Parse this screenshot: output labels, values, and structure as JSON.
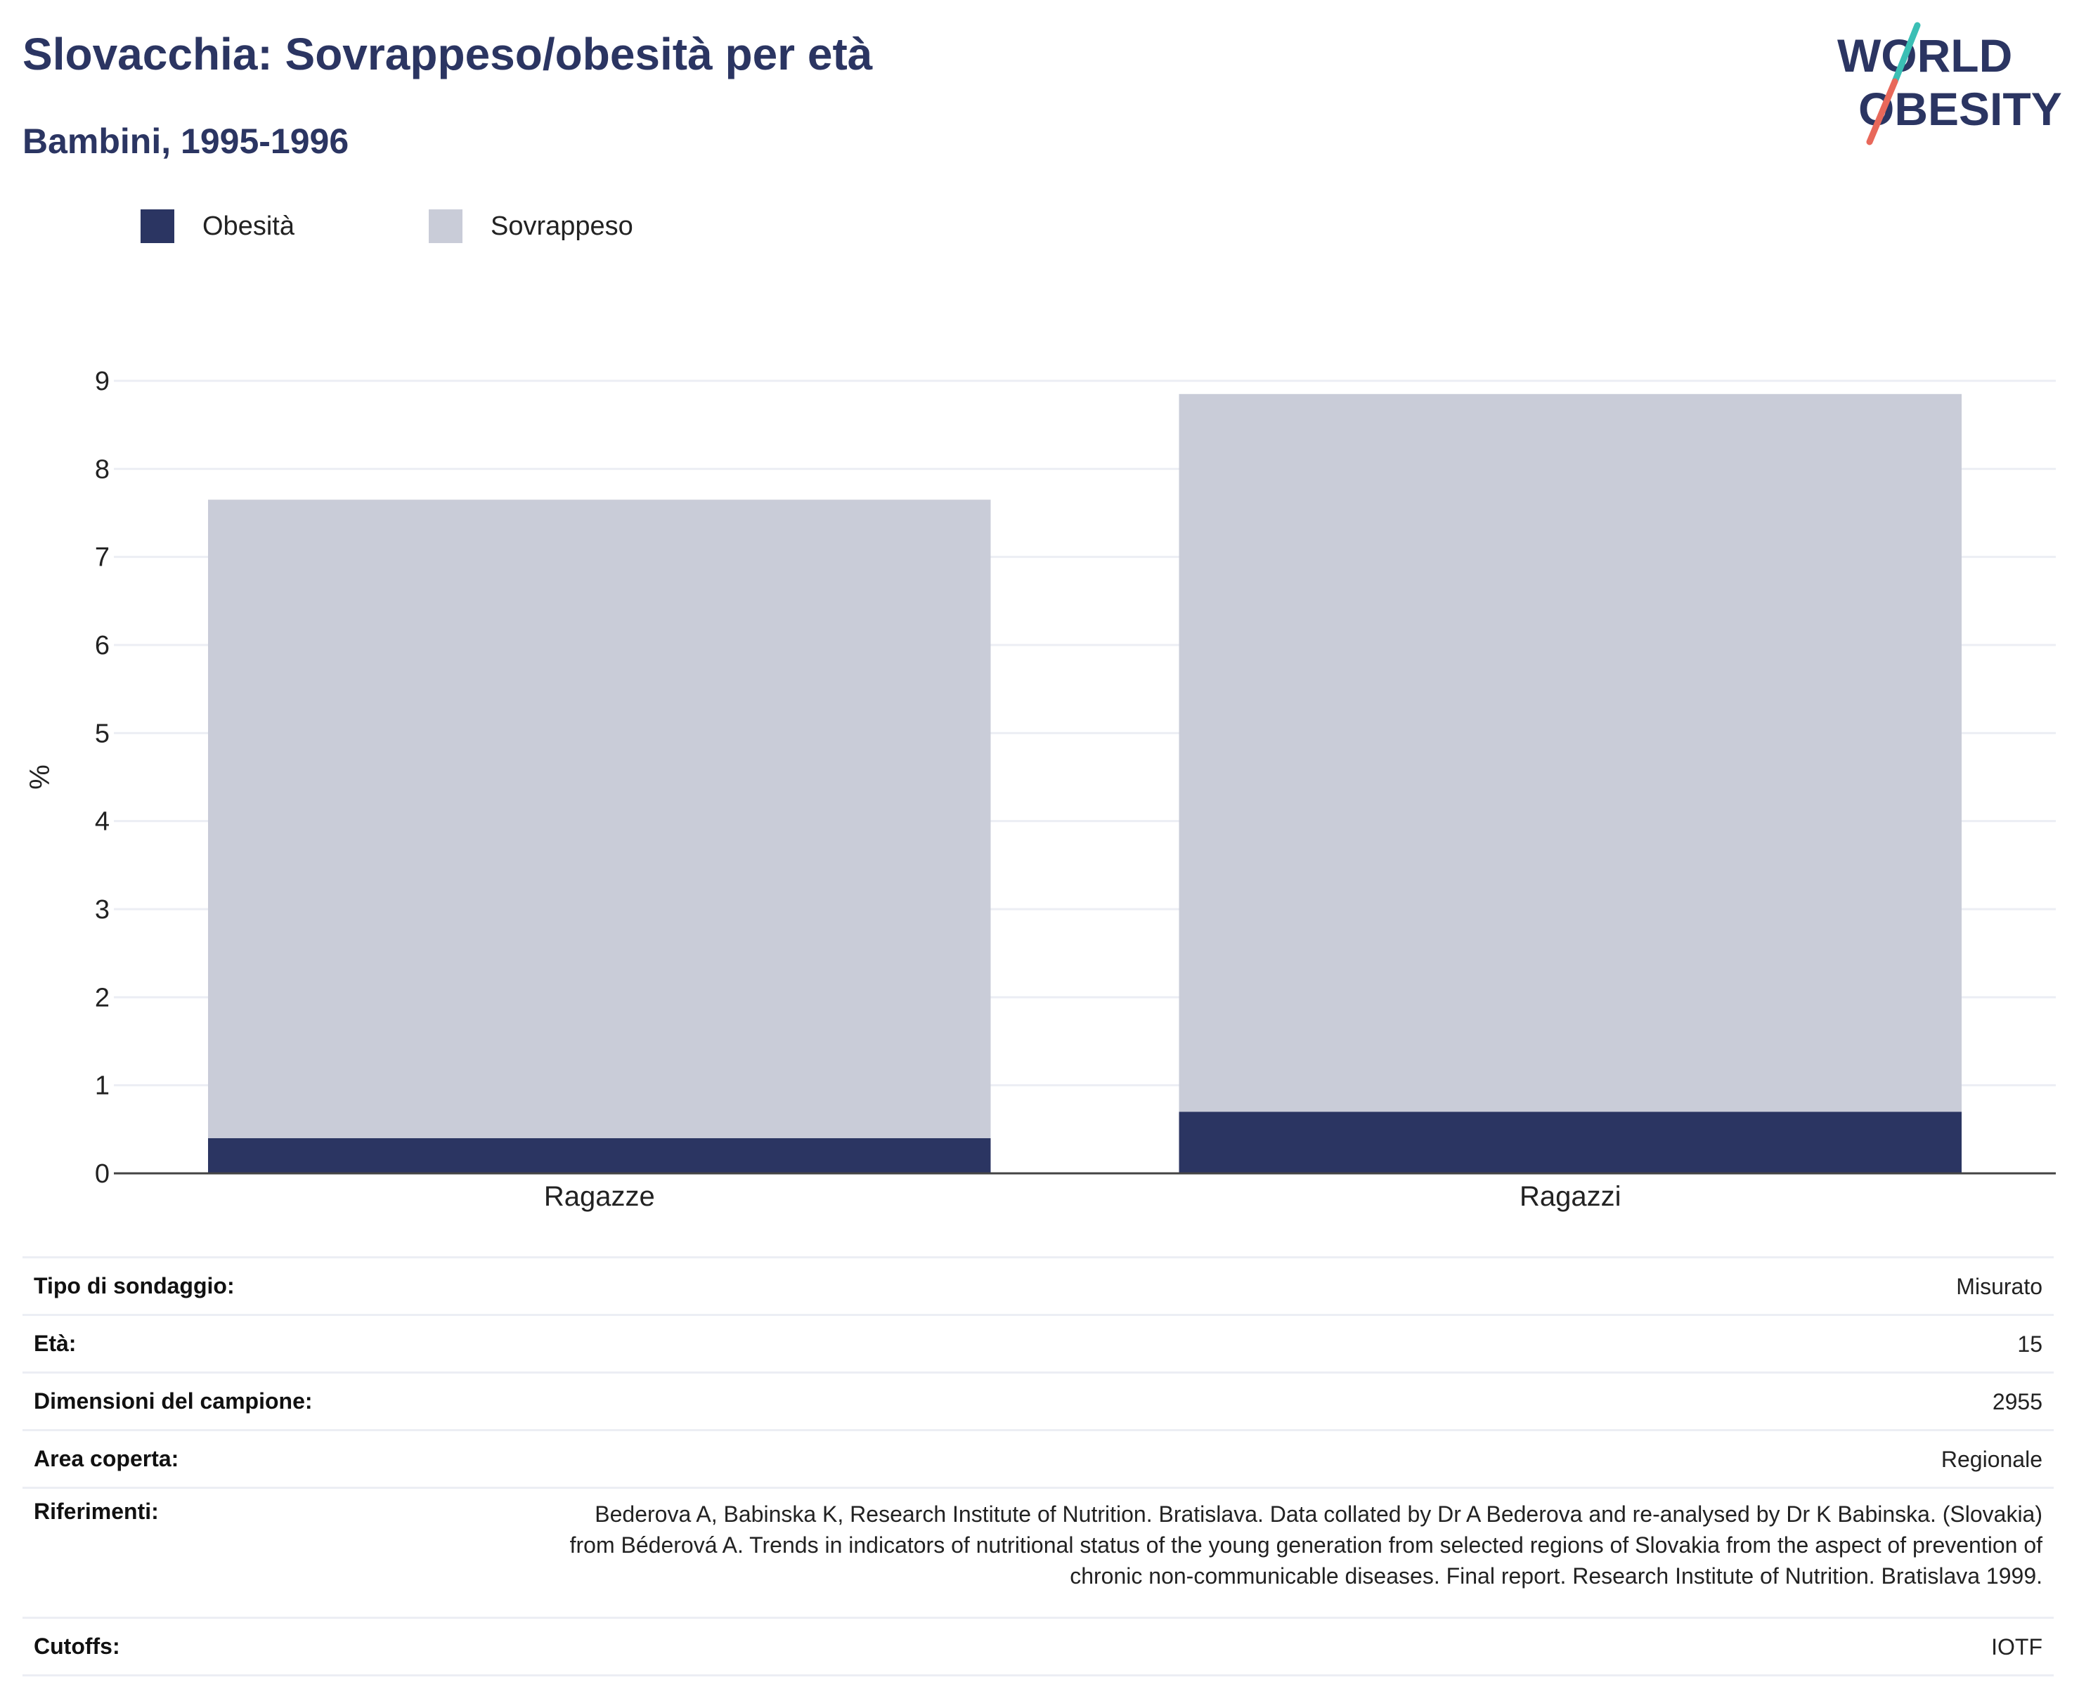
{
  "header": {
    "title": "Slovacchia: Sovrappeso/obesità per età",
    "subtitle": "Bambini, 1995-1996"
  },
  "logo": {
    "line1": "WORLD",
    "line2": "OBESITY"
  },
  "colors": {
    "obesity": "#2b3562",
    "overweight": "#c9ccd8",
    "title": "#2b3562",
    "logo_teal": "#3bbfb5",
    "logo_red": "#e8685a"
  },
  "chart_data": {
    "type": "bar",
    "stacked": true,
    "categories": [
      "Ragazze",
      "Ragazzi"
    ],
    "series": [
      {
        "name": "Obesità",
        "values": [
          0.4,
          0.7
        ]
      },
      {
        "name": "Sovrappeso",
        "values": [
          7.25,
          8.15
        ]
      }
    ],
    "totals": [
      7.65,
      8.85
    ],
    "ylabel": "%",
    "xlabel": "",
    "ylim": [
      0,
      9
    ],
    "yticks": [
      0,
      1,
      2,
      3,
      4,
      5,
      6,
      7,
      8,
      9
    ],
    "grid": true,
    "legend": "top-left"
  },
  "info_table": [
    {
      "label": "Tipo di sondaggio:",
      "value": "Misurato"
    },
    {
      "label": "Età:",
      "value": "15"
    },
    {
      "label": "Dimensioni del campione:",
      "value": "2955"
    },
    {
      "label": "Area coperta:",
      "value": "Regionale"
    },
    {
      "label": "Riferimenti:",
      "value": "Bederova A, Babinska K, Research Institute of Nutrition. Bratislava. Data collated by Dr A Bederova and re-analysed by Dr K Babinska. (Slovakia) from Béderová A. Trends in indicators of nutritional status of the young generation from selected regions of Slovakia from the aspect of prevention of chronic non-communicable diseases. Final report. Research Institute of Nutrition. Bratislava 1999."
    },
    {
      "label": "Cutoffs:",
      "value": "IOTF"
    }
  ]
}
